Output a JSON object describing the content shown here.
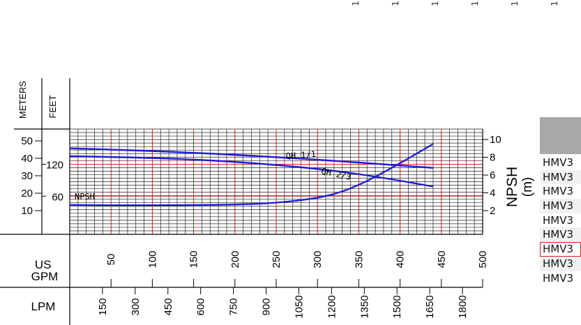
{
  "top_marks": [
    "1",
    "1",
    "1",
    "1",
    "1",
    "1"
  ],
  "side_list": {
    "items": [
      "HMV3",
      "HMV3",
      "HMV3",
      "HMV3",
      "HMV3",
      "HMV3",
      "HMV3",
      "HMV3",
      "HMV3"
    ],
    "selected_index": 6
  },
  "colors": {
    "curve": "#1f1fd6",
    "major_grid": "#e02020",
    "minor_grid": "#222222",
    "selected_border": "#d42020"
  },
  "chart_data": {
    "type": "line",
    "xlabel": "US GPM",
    "x_secondary_label": "LPM",
    "y_left_labels": [
      "METERS",
      "FEET"
    ],
    "y_right_label": "NPSH (m)",
    "xlim": [
      0,
      500
    ],
    "ylim_meters": [
      0,
      56
    ],
    "ylim_npsh": [
      0,
      11
    ],
    "x_ticks": [
      50,
      100,
      150,
      200,
      250,
      300,
      350,
      400,
      450,
      500
    ],
    "lpm_ticks": [
      150,
      300,
      450,
      600,
      750,
      900,
      1050,
      1200,
      1350,
      1500,
      1650,
      1800
    ],
    "meters_ticks": [
      10,
      20,
      30,
      40,
      50
    ],
    "feet_ticks": [
      60,
      120
    ],
    "npsh_ticks": [
      2,
      4,
      6,
      8,
      10
    ],
    "grid": true,
    "series": [
      {
        "name": "QH 1/1",
        "axis": "meters",
        "x": [
          0,
          50,
          100,
          150,
          200,
          250,
          300,
          350,
          400,
          440
        ],
        "y": [
          45.7,
          45.0,
          44.2,
          43.2,
          42.0,
          40.7,
          39.2,
          37.6,
          35.9,
          34.5
        ]
      },
      {
        "name": "QH 2/3",
        "axis": "meters",
        "x": [
          0,
          50,
          100,
          150,
          200,
          250,
          300,
          350,
          400,
          440
        ],
        "y": [
          41.2,
          40.8,
          40.2,
          39.3,
          38.0,
          36.2,
          34.0,
          31.0,
          27.2,
          23.8
        ]
      },
      {
        "name": "NPSH",
        "axis": "npsh",
        "x": [
          0,
          50,
          100,
          150,
          200,
          250,
          300,
          330,
          360,
          390,
          420,
          440
        ],
        "y": [
          2.65,
          2.6,
          2.6,
          2.62,
          2.68,
          2.85,
          3.4,
          4.1,
          5.3,
          6.8,
          8.4,
          9.5
        ]
      }
    ]
  }
}
